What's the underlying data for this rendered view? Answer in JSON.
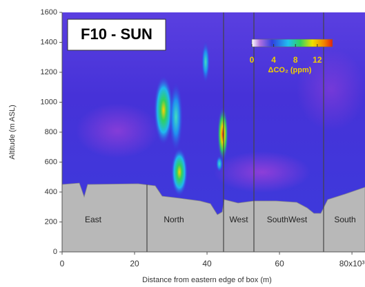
{
  "chart_data": {
    "type": "heatmap",
    "title": "F10 - SUN",
    "xlabel": "Distance from eastern edge of box (m)",
    "ylabel": "Altitude (m ASL)",
    "xlim": [
      0,
      83.6
    ],
    "xticks": [
      0,
      20,
      40,
      60,
      {
        "value": 80,
        "label": "80x10³"
      }
    ],
    "ylim": [
      0,
      1600
    ],
    "yticks": [
      0,
      200,
      400,
      600,
      800,
      1000,
      1200,
      1400,
      1600
    ],
    "colorbar": {
      "label": "ΔCO₂ (ppm)",
      "lim": [
        0,
        14.8
      ],
      "ticks": [
        0,
        4,
        8,
        12
      ]
    },
    "annotations": [
      "East",
      "North",
      "West",
      "SouthWest",
      "South"
    ]
  }
}
